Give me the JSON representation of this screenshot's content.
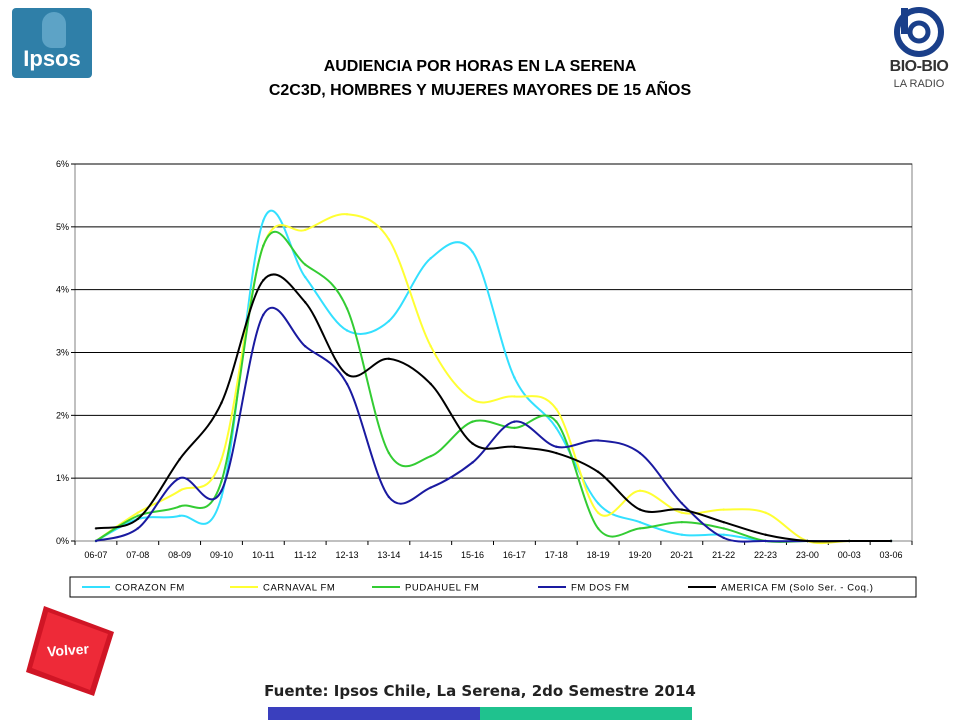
{
  "logos": {
    "left": "Ipsos",
    "right_main": "BIO-BIO",
    "right_sub": "LA RADIO"
  },
  "title_line1": "AUDIENCIA POR HORAS EN LA SERENA",
  "title_line2": "C2C3D, HOMBRES Y MUJERES MAYORES DE 15 AÑOS",
  "volver_label": "Volver",
  "source": "Fuente: Ipsos Chile, La Serena, 2do Semestre 2014",
  "colors": {
    "corazon": "#33e0ff",
    "carnaval": "#ffff33",
    "pudahuel": "#33cc33",
    "fmdos": "#1a1aa0",
    "america": "#000000",
    "volver": "#e8192c",
    "bar_blue": "#3a3fbe",
    "bar_teal": "#1fc28e"
  },
  "chart_data": {
    "type": "line",
    "title": "AUDIENCIA POR HORAS EN LA SERENA",
    "subtitle": "C2C3D, HOMBRES Y MUJERES MAYORES DE 15 AÑOS",
    "xlabel": "",
    "ylabel": "",
    "ylim": [
      0,
      6
    ],
    "yticks": [
      "0%",
      "1%",
      "2%",
      "3%",
      "4%",
      "5%",
      "6%"
    ],
    "grid": "horizontal",
    "legend_position": "bottom",
    "categories": [
      "06-07",
      "07-08",
      "08-09",
      "09-10",
      "10-11",
      "11-12",
      "12-13",
      "13-14",
      "14-15",
      "15-16",
      "16-17",
      "17-18",
      "18-19",
      "19-20",
      "20-21",
      "21-22",
      "22-23",
      "23-00",
      "00-03",
      "03-06"
    ],
    "series": [
      {
        "name": "CORAZON FM",
        "color": "#33e0ff",
        "values": [
          0.0,
          0.35,
          0.4,
          0.7,
          5.1,
          4.2,
          3.35,
          3.5,
          4.5,
          4.6,
          2.6,
          1.8,
          0.6,
          0.3,
          0.1,
          0.1,
          0.0,
          0.0,
          0.0,
          0.0
        ]
      },
      {
        "name": "CARNAVAL FM",
        "color": "#ffff33",
        "values": [
          0.0,
          0.45,
          0.8,
          1.3,
          4.7,
          4.95,
          5.2,
          4.8,
          3.1,
          2.25,
          2.3,
          2.1,
          0.45,
          0.8,
          0.45,
          0.5,
          0.45,
          0.0,
          0.0,
          0.0
        ]
      },
      {
        "name": "PUDAHUEL FM",
        "color": "#33cc33",
        "values": [
          0.0,
          0.4,
          0.55,
          0.95,
          4.7,
          4.4,
          3.7,
          1.4,
          1.35,
          1.9,
          1.8,
          1.9,
          0.2,
          0.2,
          0.3,
          0.2,
          0.0,
          0.0,
          0.0,
          0.0
        ]
      },
      {
        "name": "FM DOS FM",
        "color": "#1a1aa0",
        "values": [
          0.0,
          0.2,
          1.0,
          0.8,
          3.6,
          3.1,
          2.5,
          0.7,
          0.85,
          1.25,
          1.9,
          1.5,
          1.6,
          1.4,
          0.6,
          0.05,
          0.0,
          0.0,
          0.0,
          0.0
        ]
      },
      {
        "name": "AMERICA FM  (Solo Ser. - Coq.)",
        "color": "#000000",
        "values": [
          0.2,
          0.35,
          1.3,
          2.2,
          4.15,
          3.8,
          2.65,
          2.9,
          2.5,
          1.55,
          1.5,
          1.4,
          1.1,
          0.5,
          0.5,
          0.3,
          0.1,
          0.0,
          0.0,
          0.0
        ]
      }
    ]
  }
}
